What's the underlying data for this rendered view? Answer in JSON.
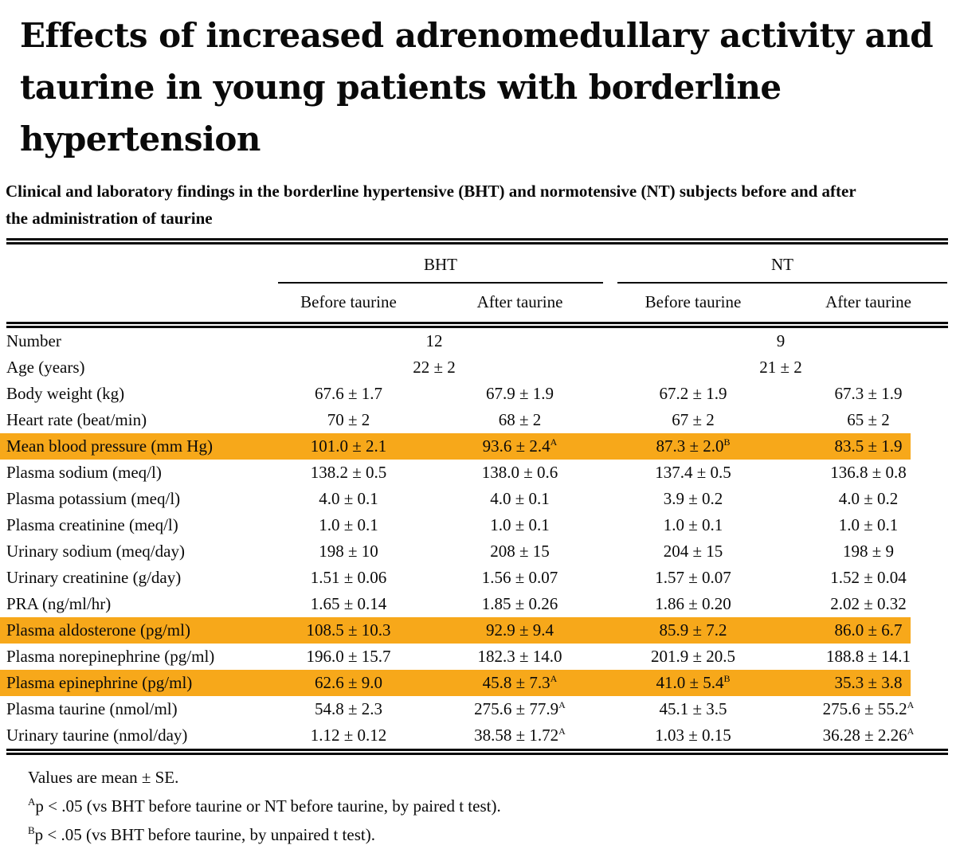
{
  "title": {
    "lines": [
      "Effects of increased adrenomedullary activity and",
      "taurine in young patients with borderline",
      "hypertension"
    ]
  },
  "caption": {
    "lines": [
      "Clinical and laboratory findings in the borderline hypertensive (BHT) and normotensive (NT) subjects before and after",
      "the administration of taurine"
    ]
  },
  "colors": {
    "highlight": "#F7A81A",
    "text": "#0a0a0a",
    "background": "#ffffff"
  },
  "table": {
    "groups": [
      {
        "label": "BHT"
      },
      {
        "label": "NT"
      }
    ],
    "sub_headers": [
      "Before taurine",
      "After taurine",
      "Before taurine",
      "After taurine"
    ],
    "rows": [
      {
        "label": "Number",
        "span": true,
        "highlight": false,
        "values": [
          "12",
          "9"
        ]
      },
      {
        "label": "Age (years)",
        "span": true,
        "highlight": false,
        "values": [
          "22 ± 2",
          "21 ± 2"
        ]
      },
      {
        "label": "Body weight (kg)",
        "span": false,
        "highlight": false,
        "values": [
          "67.6 ± 1.7",
          "67.9 ± 1.9",
          "67.2 ± 1.9",
          "67.3 ± 1.9"
        ]
      },
      {
        "label": "Heart rate (beat/min)",
        "span": false,
        "highlight": false,
        "values": [
          "70 ± 2",
          "68 ± 2",
          "67 ± 2",
          "65 ± 2"
        ]
      },
      {
        "label": "Mean blood pressure (mm Hg)",
        "span": false,
        "highlight": true,
        "values": [
          "101.0 ± 2.1",
          "93.6 ± 2.4^A",
          "87.3 ± 2.0^B",
          "83.5 ± 1.9"
        ]
      },
      {
        "label": "Plasma sodium (meq/l)",
        "span": false,
        "highlight": false,
        "values": [
          "138.2 ± 0.5",
          "138.0 ± 0.6",
          "137.4 ± 0.5",
          "136.8 ± 0.8"
        ]
      },
      {
        "label": "Plasma potassium (meq/l)",
        "span": false,
        "highlight": false,
        "values": [
          "4.0 ± 0.1",
          "4.0 ± 0.1",
          "3.9 ± 0.2",
          "4.0 ± 0.2"
        ]
      },
      {
        "label": "Plasma creatinine (meq/l)",
        "span": false,
        "highlight": false,
        "values": [
          "1.0 ± 0.1",
          "1.0 ± 0.1",
          "1.0 ± 0.1",
          "1.0 ± 0.1"
        ]
      },
      {
        "label": "Urinary sodium (meq/day)",
        "span": false,
        "highlight": false,
        "values": [
          "198 ± 10",
          "208 ± 15",
          "204 ± 15",
          "198 ± 9"
        ]
      },
      {
        "label": "Urinary creatinine (g/day)",
        "span": false,
        "highlight": false,
        "values": [
          "1.51 ± 0.06",
          "1.56 ± 0.07",
          "1.57 ± 0.07",
          "1.52 ± 0.04"
        ]
      },
      {
        "label": "PRA (ng/ml/hr)",
        "span": false,
        "highlight": false,
        "values": [
          "1.65 ± 0.14",
          "1.85 ± 0.26",
          "1.86 ± 0.20",
          "2.02 ± 0.32"
        ]
      },
      {
        "label": "Plasma aldosterone (pg/ml)",
        "span": false,
        "highlight": true,
        "values": [
          "108.5 ± 10.3",
          "92.9 ± 9.4",
          "85.9 ± 7.2",
          "86.0 ± 6.7"
        ]
      },
      {
        "label": "Plasma norepinephrine (pg/ml)",
        "span": false,
        "highlight": false,
        "values": [
          "196.0 ± 15.7",
          "182.3 ± 14.0",
          "201.9 ± 20.5",
          "188.8 ± 14.1"
        ]
      },
      {
        "label": "Plasma epinephrine (pg/ml)",
        "span": false,
        "highlight": true,
        "values": [
          "62.6 ± 9.0",
          "45.8 ± 7.3^A",
          "41.0 ± 5.4^B",
          "35.3 ± 3.8"
        ]
      },
      {
        "label": "Plasma taurine (nmol/ml)",
        "span": false,
        "highlight": false,
        "values": [
          "54.8 ± 2.3",
          "275.6 ± 77.9^A",
          "45.1 ± 3.5",
          "275.6 ± 55.2^A"
        ]
      },
      {
        "label": "Urinary taurine (nmol/day)",
        "span": false,
        "highlight": false,
        "values": [
          "1.12 ± 0.12",
          "38.58 ± 1.72^A",
          "1.03 ± 0.15",
          "36.28 ± 2.26^A"
        ]
      }
    ]
  },
  "footnotes": [
    {
      "sup": "",
      "text": "Values are mean ± SE."
    },
    {
      "sup": "A",
      "text": "p < .05 (vs BHT before taurine or NT before taurine, by paired t test)."
    },
    {
      "sup": "B",
      "text": "p < .05 (vs BHT before taurine, by unpaired t test)."
    }
  ]
}
